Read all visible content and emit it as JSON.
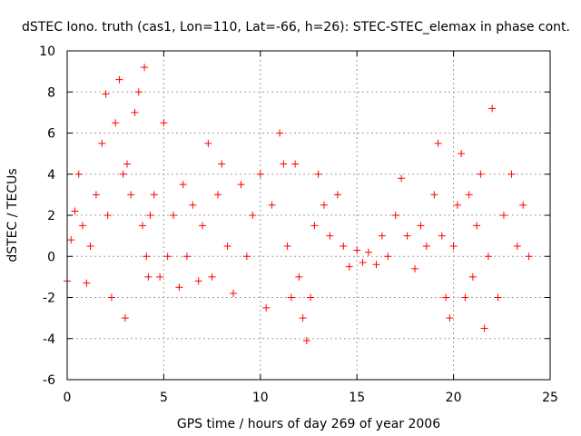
{
  "chart_data": {
    "type": "scatter",
    "title": "dSTEC Iono. truth (cas1, Lon=110, Lat=-66, h=26): STEC-STEC_elemax in phase cont.",
    "xlabel": "GPS time / hours of day 269 of year 2006",
    "ylabel": "dSTEC  / TECUs",
    "xlim": [
      0,
      25
    ],
    "ylim": [
      -6,
      10
    ],
    "xticks": [
      0,
      5,
      10,
      15,
      20,
      25
    ],
    "yticks": [
      -6,
      -4,
      -2,
      0,
      2,
      4,
      6,
      8,
      10
    ],
    "xtick_labels": [
      "0",
      "5",
      "10",
      "15",
      "20",
      "25"
    ],
    "ytick_labels": [
      "-6",
      "-4",
      "-2",
      "0",
      "2",
      "4",
      "6",
      "8",
      "10"
    ],
    "grid": true,
    "marker": "+",
    "color": "#ff0000",
    "series": [
      {
        "x": [
          0.0,
          0.2,
          0.4,
          0.6,
          0.8,
          1.0,
          1.2,
          1.5,
          1.8,
          2.0,
          2.1,
          2.3,
          2.5,
          2.7,
          2.9,
          3.0,
          3.1,
          3.3,
          3.5,
          3.7,
          3.9,
          4.0,
          4.1,
          4.2,
          4.3,
          4.5,
          4.8,
          5.0,
          5.2,
          5.5,
          5.8,
          6.0,
          6.2,
          6.5,
          6.8,
          7.0,
          7.3,
          7.5,
          7.8,
          8.0,
          8.3,
          8.6,
          9.0,
          9.3,
          9.6,
          10.0,
          10.3,
          10.6,
          11.0,
          11.2,
          11.4,
          11.6,
          11.8,
          12.0,
          12.2,
          12.4,
          12.6,
          12.8,
          13.0,
          13.3,
          13.6,
          14.0,
          14.3,
          14.6,
          15.0,
          15.3,
          15.6,
          16.0,
          16.3,
          16.6,
          17.0,
          17.3,
          17.6,
          18.0,
          18.3,
          18.6,
          19.0,
          19.2,
          19.4,
          19.6,
          19.8,
          20.0,
          20.2,
          20.4,
          20.6,
          20.8,
          21.0,
          21.2,
          21.4,
          21.6,
          21.8,
          22.0,
          22.3,
          22.6,
          23.0,
          23.3,
          23.6,
          23.9
        ],
        "y": [
          -1.2,
          0.8,
          2.2,
          4.0,
          1.5,
          -1.3,
          0.5,
          3.0,
          5.5,
          7.9,
          2.0,
          -2.0,
          6.5,
          8.6,
          4.0,
          -3.0,
          4.5,
          3.0,
          7.0,
          8.0,
          1.5,
          9.2,
          0.0,
          -1.0,
          2.0,
          3.0,
          -1.0,
          6.5,
          0.0,
          2.0,
          -1.5,
          3.5,
          0.0,
          2.5,
          -1.2,
          1.5,
          5.5,
          -1.0,
          3.0,
          4.5,
          0.5,
          -1.8,
          3.5,
          0.0,
          2.0,
          4.0,
          -2.5,
          2.5,
          6.0,
          4.5,
          0.5,
          -2.0,
          4.5,
          -1.0,
          -3.0,
          -4.1,
          -2.0,
          1.5,
          4.0,
          2.5,
          1.0,
          3.0,
          0.5,
          -0.5,
          0.3,
          -0.3,
          0.2,
          -0.4,
          1.0,
          0.0,
          2.0,
          3.8,
          1.0,
          -0.6,
          1.5,
          0.5,
          3.0,
          5.5,
          1.0,
          -2.0,
          -3.0,
          0.5,
          2.5,
          5.0,
          -2.0,
          3.0,
          -1.0,
          1.5,
          4.0,
          -3.5,
          0.0,
          7.2,
          -2.0,
          2.0,
          4.0,
          0.5,
          2.5,
          0.0
        ]
      }
    ]
  }
}
